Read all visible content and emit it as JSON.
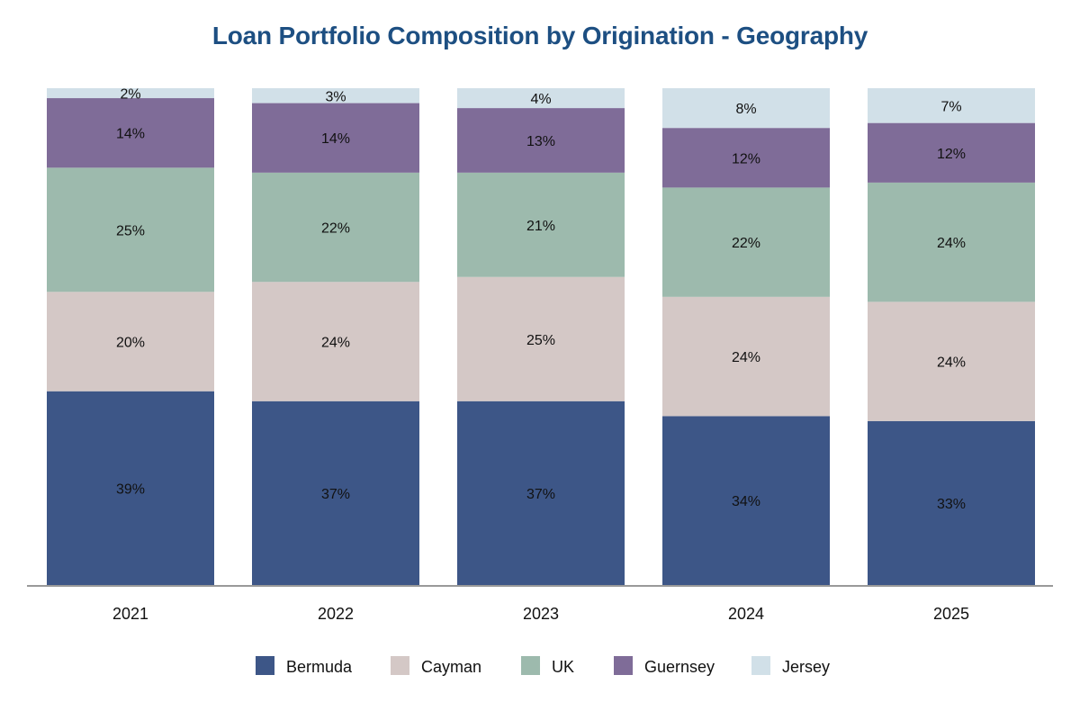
{
  "chart_data": {
    "type": "bar",
    "stacked": true,
    "title": "Loan Portfolio Composition by Origination - Geography",
    "categories": [
      "2021",
      "2022",
      "2023",
      "2024",
      "2025"
    ],
    "series": [
      {
        "name": "Bermuda",
        "color": "#3d5687",
        "values": [
          39,
          37,
          37,
          34,
          33
        ],
        "labels": [
          "39%",
          "37%",
          "37%",
          "34%",
          "33%"
        ]
      },
      {
        "name": "Cayman",
        "color": "#d4c8c6",
        "values": [
          20,
          24,
          25,
          24,
          24
        ],
        "labels": [
          "20%",
          "24%",
          "25%",
          "24%",
          "24%"
        ]
      },
      {
        "name": "UK",
        "color": "#9dbaad",
        "values": [
          25,
          22,
          21,
          22,
          24
        ],
        "labels": [
          "25%",
          "22%",
          "21%",
          "22%",
          "24%"
        ]
      },
      {
        "name": "Guernsey",
        "color": "#7f6c98",
        "values": [
          14,
          14,
          13,
          12,
          12
        ],
        "labels": [
          "14%",
          "14%",
          "13%",
          "12%",
          "12%"
        ]
      },
      {
        "name": "Jersey",
        "color": "#d1e0e8",
        "values": [
          2,
          3,
          4,
          8,
          7
        ],
        "labels": [
          "2%",
          "3%",
          "4%",
          "8%",
          "7%"
        ]
      }
    ],
    "ylim": [
      0,
      100
    ],
    "grid": false,
    "legend": "bottom-center"
  }
}
